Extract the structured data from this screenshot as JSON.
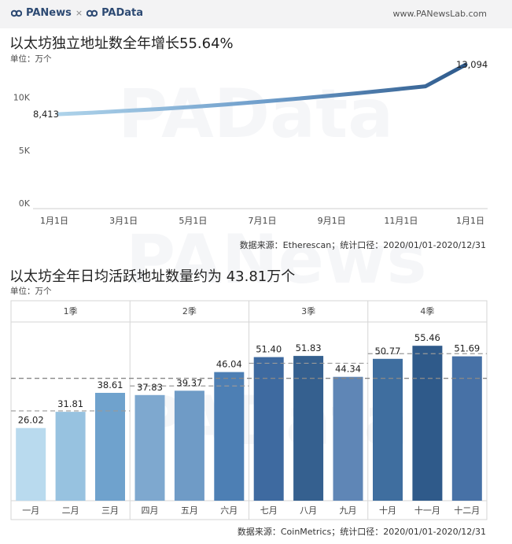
{
  "header": {
    "brand_left": "PANews",
    "brand_sep": "×",
    "brand_right": "PAData",
    "site_url": "www.PANewsLab.com"
  },
  "chart_data": [
    {
      "type": "line",
      "title": "以太坊独立地址数全年增长55.64%",
      "unit": "单位：万个",
      "x_ticks": [
        "1月1日",
        "3月1日",
        "5月1日",
        "7月1日",
        "9月1日",
        "11月1日",
        "1月1日"
      ],
      "y_ticks": [
        "0K",
        "5K",
        "10K"
      ],
      "ylim": [
        0,
        14000
      ],
      "series": [
        {
          "x": [
            0,
            30,
            60,
            90,
            120,
            150,
            180,
            210,
            240,
            270,
            300,
            330,
            366
          ],
          "y": [
            8413,
            8560,
            8730,
            8900,
            9100,
            9330,
            9580,
            9840,
            10120,
            10410,
            10720,
            11050,
            13094
          ]
        }
      ],
      "start_label": "8,413",
      "end_label": "13,094",
      "source": "数据来源：Etherescan；统计口径：2020/01/01-2020/12/31"
    },
    {
      "type": "bar",
      "title": "以太坊全年日均活跃地址数量约为 43.81万个",
      "unit": "单位：万个",
      "quarters": [
        "1季",
        "2季",
        "3季",
        "4季"
      ],
      "categories": [
        "一月",
        "二月",
        "三月",
        "四月",
        "五月",
        "六月",
        "七月",
        "八月",
        "九月",
        "十月",
        "十一月",
        "十二月"
      ],
      "values": [
        26.02,
        31.81,
        38.61,
        37.83,
        39.37,
        46.04,
        51.4,
        51.83,
        44.34,
        50.77,
        55.46,
        51.69
      ],
      "value_labels": [
        "26.02",
        "31.81",
        "38.61",
        "37.83",
        "39.37",
        "46.04",
        "51.40",
        "51.83",
        "44.34",
        "50.77",
        "55.46",
        "51.69"
      ],
      "quarter_averages": [
        32.15,
        41.08,
        49.19,
        52.64
      ],
      "overall_average": 43.81,
      "ylim": [
        0,
        62
      ],
      "colors": [
        "#b9daee",
        "#97c2e0",
        "#6fa2cd",
        "#7ea8cf",
        "#6f9bc6",
        "#4d7fb4",
        "#3e6aa0",
        "#35608f",
        "#5f86b6",
        "#3f6e9f",
        "#2f5a8a",
        "#4771a6"
      ],
      "source": "数据来源：CoinMetrics；统计口径：2020/01/01-2020/12/31"
    }
  ],
  "watermarks": [
    "PAData",
    "PANews",
    "PAData"
  ]
}
